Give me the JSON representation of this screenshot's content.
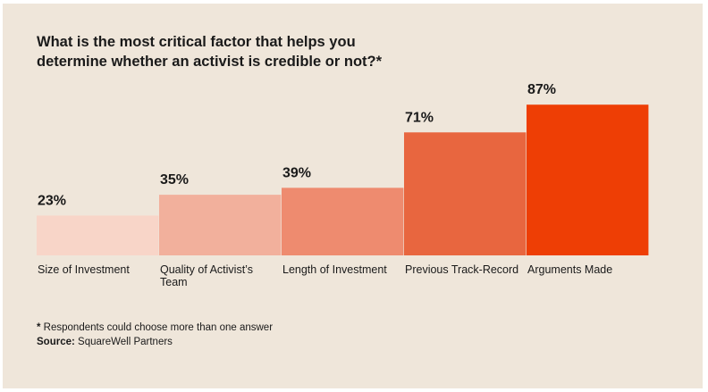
{
  "chart_data": {
    "type": "bar",
    "title": "What is the most critical factor that helps you determine whether an activist is credible or not?*",
    "title_lines": [
      "What is the most critical factor that helps you",
      "determine whether an activist is credible or not?*"
    ],
    "categories": [
      "Size of Investment",
      "Quality of Activist's Team",
      "Length of Investment",
      "Previous Track-Record",
      "Arguments Made"
    ],
    "category_lines": [
      [
        "Size of Investment"
      ],
      [
        "Quality of Activist’s",
        "Team"
      ],
      [
        "Length of Investment"
      ],
      [
        "Previous Track-Record"
      ],
      [
        "Arguments Made"
      ]
    ],
    "values": [
      23,
      35,
      39,
      71,
      87
    ],
    "value_labels": [
      "23%",
      "35%",
      "39%",
      "71%",
      "87%"
    ],
    "bar_colors": [
      "#f8d5c8",
      "#f2b09c",
      "#ee8b6f",
      "#e8663f",
      "#ee3e05"
    ],
    "ylim": [
      0,
      100
    ],
    "grid": false,
    "legend": "none",
    "xlabel": "",
    "ylabel": ""
  },
  "footnote": {
    "asterisk": "*",
    "note": " Respondents could choose more than one answer",
    "source_label": "Source:",
    "source_text": " SquareWell Partners"
  },
  "colors": {
    "background": "#efe6da",
    "text": "#1a1a1a"
  }
}
